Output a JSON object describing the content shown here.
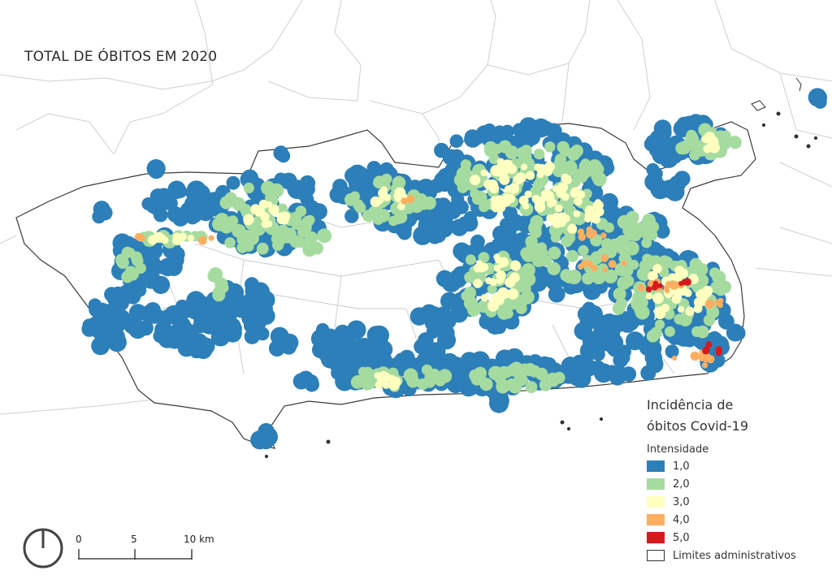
{
  "map_title": "TOTAL DE ÓBITOS EM 2020",
  "legend": {
    "title_line1": "Incidência de",
    "title_line2": "óbitos Covid-19",
    "subtitle": "Intensidade",
    "items": [
      {
        "label": "1,0",
        "color": "#2c7fb8"
      },
      {
        "label": "2,0",
        "color": "#a6dba0"
      },
      {
        "label": "3,0",
        "color": "#ffffbf"
      },
      {
        "label": "4,0",
        "color": "#fdae61"
      },
      {
        "label": "5,0",
        "color": "#d7191c"
      },
      {
        "label": "Limites administrativos",
        "color": "#ffffff"
      }
    ]
  },
  "scale_bar": {
    "labels": [
      "0",
      "5",
      "10 km"
    ]
  },
  "icons": {
    "north_arrow": "north-arrow-icon"
  }
}
